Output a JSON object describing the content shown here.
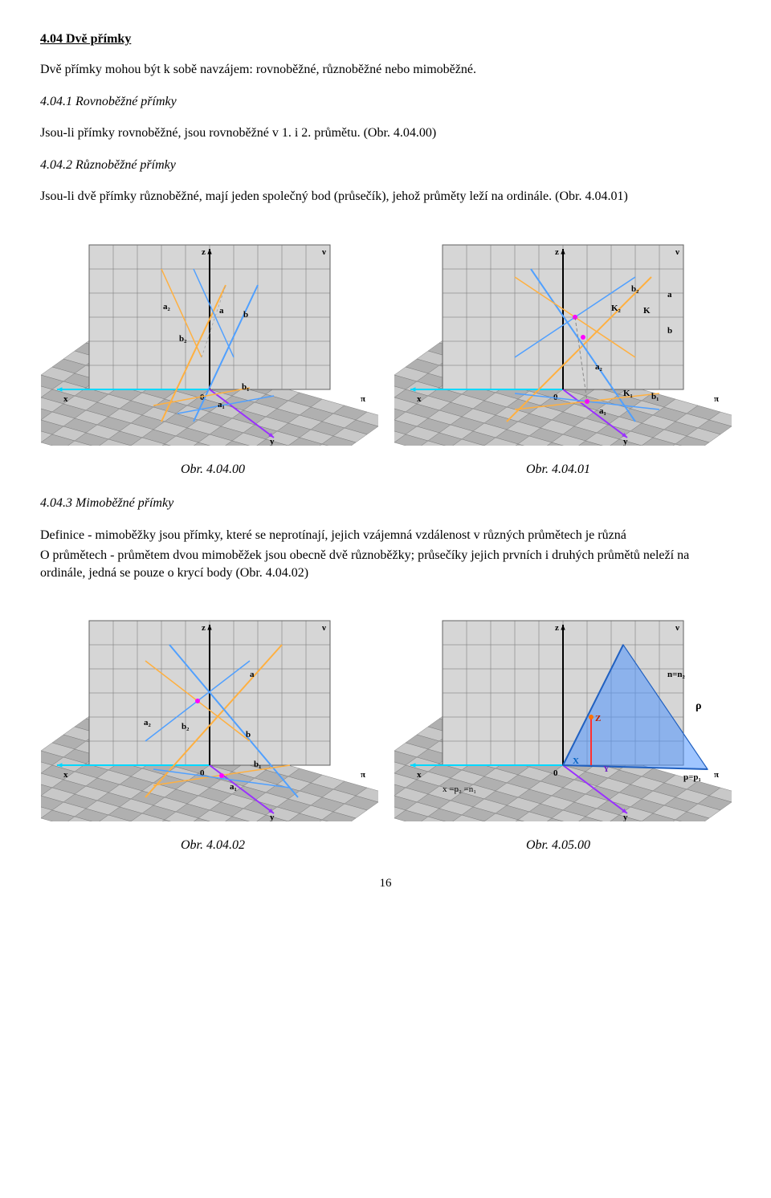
{
  "title": "4.04 Dvě přímky",
  "intro": "Dvě přímky mohou být k sobě navzájem: rovnoběžné, různoběžné nebo mimoběžné.",
  "sec1": {
    "heading": "4.04.1 Rovnoběžné přímky",
    "body": "Jsou-li přímky rovnoběžné, jsou rovnoběžné v 1. i 2. průmětu. (Obr. 4.04.00)"
  },
  "sec2": {
    "heading": "4.04.2 Různoběžné přímky",
    "body": "Jsou-li dvě přímky různoběžné, mají jeden společný bod (průsečík), jehož průměty leží na ordinále. (Obr. 4.04.01)"
  },
  "caption1": {
    "left": "Obr. 4.04.00",
    "right": "Obr. 4.04.01"
  },
  "sec3": {
    "heading": "4.04.3 Mimoběžné přímky",
    "p1": "Definice - mimoběžky jsou přímky, které se neprotínají, jejich vzájemná vzdálenost v různých průmětech je různá",
    "p2": "O průmětech - průmětem dvou mimoběžek jsou obecně dvě různoběžky; průsečíky jejich prvních i druhých průmětů neleží na ordinále, jedná se pouze o krycí body (Obr. 4.04.02)"
  },
  "caption2": {
    "left": "Obr. 4.04.02",
    "right": "Obr. 4.05.00"
  },
  "pagenum": "16",
  "figures": {
    "grid_fill": "#b8b8b8",
    "grid_line": "#707070",
    "plane_fill": "#d6d6d6",
    "plane_edge": "#606060",
    "axis_x": "#00d8ff",
    "axis_y": "#9a30ff",
    "axis_z": "#ff3030",
    "axis_arrow": "#000",
    "line_a": "#ffb040",
    "line_b": "#50a0ff",
    "line_c": "#40d0d0",
    "point": "#ff00ff",
    "label_color": "#000",
    "blue_plane": "#4a90ffaa",
    "blue_plane_edge": "#2060c0",
    "fig00": {
      "labels": [
        "z",
        "ν",
        "x",
        "y",
        "π",
        "0",
        "a₂",
        "a",
        "b",
        "b₂",
        "b₁",
        "a₁"
      ]
    },
    "fig01": {
      "labels": [
        "z",
        "ν",
        "x",
        "y",
        "π",
        "0",
        "a",
        "b",
        "b₂",
        "K",
        "K₂",
        "a₂",
        "K₁",
        "b₁",
        "a₁"
      ]
    },
    "fig02": {
      "labels": [
        "z",
        "ν",
        "x",
        "y",
        "π",
        "0",
        "a",
        "b",
        "a₂",
        "b₂",
        "b₁",
        "a₁"
      ]
    },
    "fig03": {
      "labels": [
        "z",
        "ν",
        "x",
        "y",
        "π",
        "0",
        "X",
        "Y",
        "Z",
        "ρ",
        "n=n₂",
        "p=p₁",
        "x =p₂ =n₁"
      ]
    }
  }
}
